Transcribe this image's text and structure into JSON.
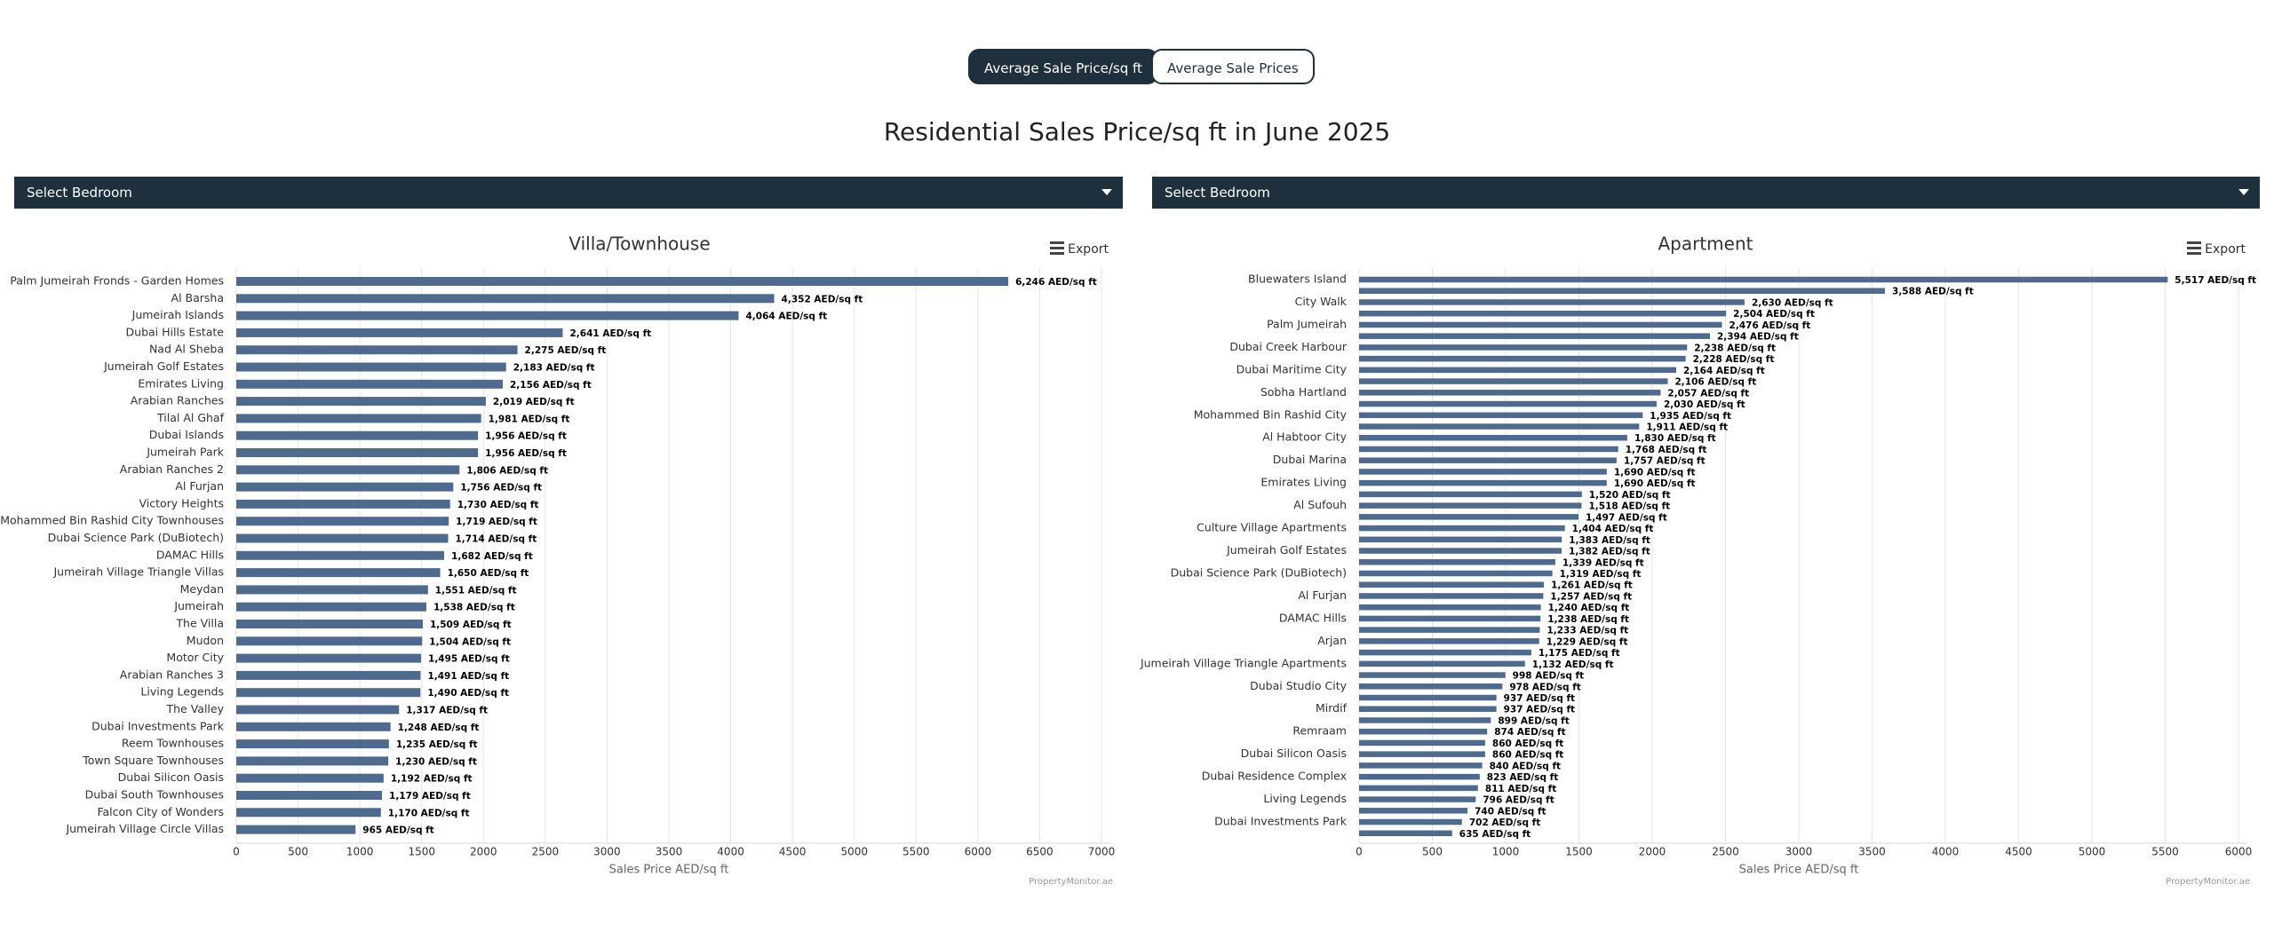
{
  "header": {
    "buttons": [
      "Average Sale Price/sq ft",
      "Average Sale Prices"
    ],
    "title": "Residential Sales Price/sq ft in June 2025"
  },
  "chart_data": [
    {
      "type": "bar",
      "orientation": "horizontal",
      "title": "Villa/Townhouse",
      "dropdown": "Select Bedroom",
      "export": "Export",
      "credit": "PropertyMonitor.ae",
      "xlabel": "Sales Price AED/sq ft",
      "color": "#4e6a8e",
      "grid": true,
      "categories": [
        "Palm Jumeirah Fronds - Garden Homes",
        "Al Barsha",
        "Jumeirah Islands",
        "Dubai Hills Estate",
        "Nad Al Sheba",
        "Jumeirah Golf Estates",
        "Emirates Living",
        "Arabian Ranches",
        "Tilal Al Ghaf",
        "Dubai Islands",
        "Jumeirah Park",
        "Arabian Ranches 2",
        "Al Furjan",
        "Victory Heights",
        "Mohammed Bin Rashid City Townhouses",
        "Dubai Science Park (DuBiotech)",
        "DAMAC Hills",
        "Jumeirah Village Triangle Villas",
        "Meydan",
        "Jumeirah",
        "The Villa",
        "Mudon",
        "Motor City",
        "Arabian Ranches 3",
        "Living Legends",
        "The Valley",
        "Dubai Investments Park",
        "Reem Townhouses",
        "Town Square Townhouses",
        "Dubai Silicon Oasis",
        "Dubai South Townhouses",
        "Falcon City of Wonders",
        "Jumeirah Village Circle Villas"
      ],
      "values": [
        6246,
        4352,
        4064,
        2641,
        2275,
        2183,
        2156,
        2019,
        1981,
        1956,
        1956,
        1806,
        1756,
        1730,
        1719,
        1714,
        1682,
        1650,
        1551,
        1538,
        1509,
        1504,
        1495,
        1491,
        1490,
        1317,
        1248,
        1235,
        1230,
        1192,
        1179,
        1170,
        965
      ],
      "value_labels": [
        "6,246 AED/sq ft",
        "4,352 AED/sq ft",
        "4,064 AED/sq ft",
        "2,641 AED/sq ft",
        "2,275 AED/sq ft",
        "2,183 AED/sq ft",
        "2,156 AED/sq ft",
        "2,019 AED/sq ft",
        "1,981 AED/sq ft",
        "1,956 AED/sq ft",
        "1,956 AED/sq ft",
        "1,806 AED/sq ft",
        "1,756 AED/sq ft",
        "1,730 AED/sq ft",
        "1,719 AED/sq ft",
        "1,714 AED/sq ft",
        "1,682 AED/sq ft",
        "1,650 AED/sq ft",
        "1,551 AED/sq ft",
        "1,538 AED/sq ft",
        "1,509 AED/sq ft",
        "1,504 AED/sq ft",
        "1,495 AED/sq ft",
        "1,491 AED/sq ft",
        "1,490 AED/sq ft",
        "1,317 AED/sq ft",
        "1,248 AED/sq ft",
        "1,235 AED/sq ft",
        "1,230 AED/sq ft",
        "1,192 AED/sq ft",
        "1,179 AED/sq ft",
        "1,170 AED/sq ft",
        "965 AED/sq ft"
      ],
      "xlim": [
        0,
        7000
      ],
      "xticks": [
        0,
        500,
        1000,
        1500,
        2000,
        2500,
        3000,
        3500,
        4000,
        4500,
        5000,
        5500,
        6000,
        6500,
        7000
      ]
    },
    {
      "type": "bar",
      "orientation": "horizontal",
      "title": "Apartment",
      "dropdown": "Select Bedroom",
      "export": "Export",
      "credit": "PropertyMonitor.ae",
      "xlabel": "Sales Price AED/sq ft",
      "color": "#4e6a8e",
      "grid": true,
      "categories": [
        "Bluewaters Island",
        null,
        "City Walk",
        null,
        "Palm Jumeirah",
        null,
        "Dubai Creek Harbour",
        null,
        "Dubai Maritime City",
        null,
        "Sobha Hartland",
        null,
        "Mohammed Bin Rashid City",
        null,
        "Al Habtoor City",
        null,
        "Dubai Marina",
        null,
        "Emirates Living",
        null,
        "Al Sufouh",
        null,
        "Culture Village Apartments",
        null,
        "Jumeirah Golf Estates",
        null,
        "Dubai Science Park (DuBiotech)",
        null,
        "Al Furjan",
        null,
        "DAMAC Hills",
        null,
        "Arjan",
        null,
        "Jumeirah Village Triangle Apartments",
        null,
        "Dubai Studio City",
        null,
        "Mirdif",
        null,
        "Remraam",
        null,
        "Dubai Silicon Oasis",
        null,
        "Dubai Residence Complex",
        null,
        "Living Legends",
        null,
        "Dubai Investments Park",
        null
      ],
      "values": [
        5517,
        3588,
        2630,
        2504,
        2476,
        2394,
        2238,
        2228,
        2164,
        2106,
        2057,
        2030,
        1935,
        1911,
        1830,
        1768,
        1757,
        1690,
        1690,
        1520,
        1518,
        1497,
        1404,
        1383,
        1382,
        1339,
        1319,
        1261,
        1257,
        1240,
        1238,
        1233,
        1229,
        1175,
        1132,
        998,
        978,
        937,
        937,
        899,
        874,
        860,
        860,
        840,
        823,
        811,
        796,
        740,
        702,
        635
      ],
      "value_labels": [
        "5,517 AED/sq ft",
        "3,588 AED/sq ft",
        "2,630 AED/sq ft",
        "2,504 AED/sq ft",
        "2,476 AED/sq ft",
        "2,394 AED/sq ft",
        "2,238 AED/sq ft",
        "2,228 AED/sq ft",
        "2,164 AED/sq ft",
        "2,106 AED/sq ft",
        "2,057 AED/sq ft",
        "2,030 AED/sq ft",
        "1,935 AED/sq ft",
        "1,911 AED/sq ft",
        "1,830 AED/sq ft",
        "1,768 AED/sq ft",
        "1,757 AED/sq ft",
        "1,690 AED/sq ft",
        "1,690 AED/sq ft",
        "1,520 AED/sq ft",
        "1,518 AED/sq ft",
        "1,497 AED/sq ft",
        "1,404 AED/sq ft",
        "1,383 AED/sq ft",
        "1,382 AED/sq ft",
        "1,339 AED/sq ft",
        "1,319 AED/sq ft",
        "1,261 AED/sq ft",
        "1,257 AED/sq ft",
        "1,240 AED/sq ft",
        "1,238 AED/sq ft",
        "1,233 AED/sq ft",
        "1,229 AED/sq ft",
        "1,175 AED/sq ft",
        "1,132 AED/sq ft",
        "998 AED/sq ft",
        "978 AED/sq ft",
        "937 AED/sq ft",
        "937 AED/sq ft",
        "899 AED/sq ft",
        "874 AED/sq ft",
        "860 AED/sq ft",
        "860 AED/sq ft",
        "840 AED/sq ft",
        "823 AED/sq ft",
        "811 AED/sq ft",
        "796 AED/sq ft",
        "740 AED/sq ft",
        "702 AED/sq ft",
        "635 AED/sq ft"
      ],
      "xlim": [
        0,
        6000
      ],
      "xticks": [
        0,
        500,
        1000,
        1500,
        2000,
        2500,
        3000,
        3500,
        4000,
        4500,
        5000,
        5500,
        6000
      ]
    }
  ]
}
